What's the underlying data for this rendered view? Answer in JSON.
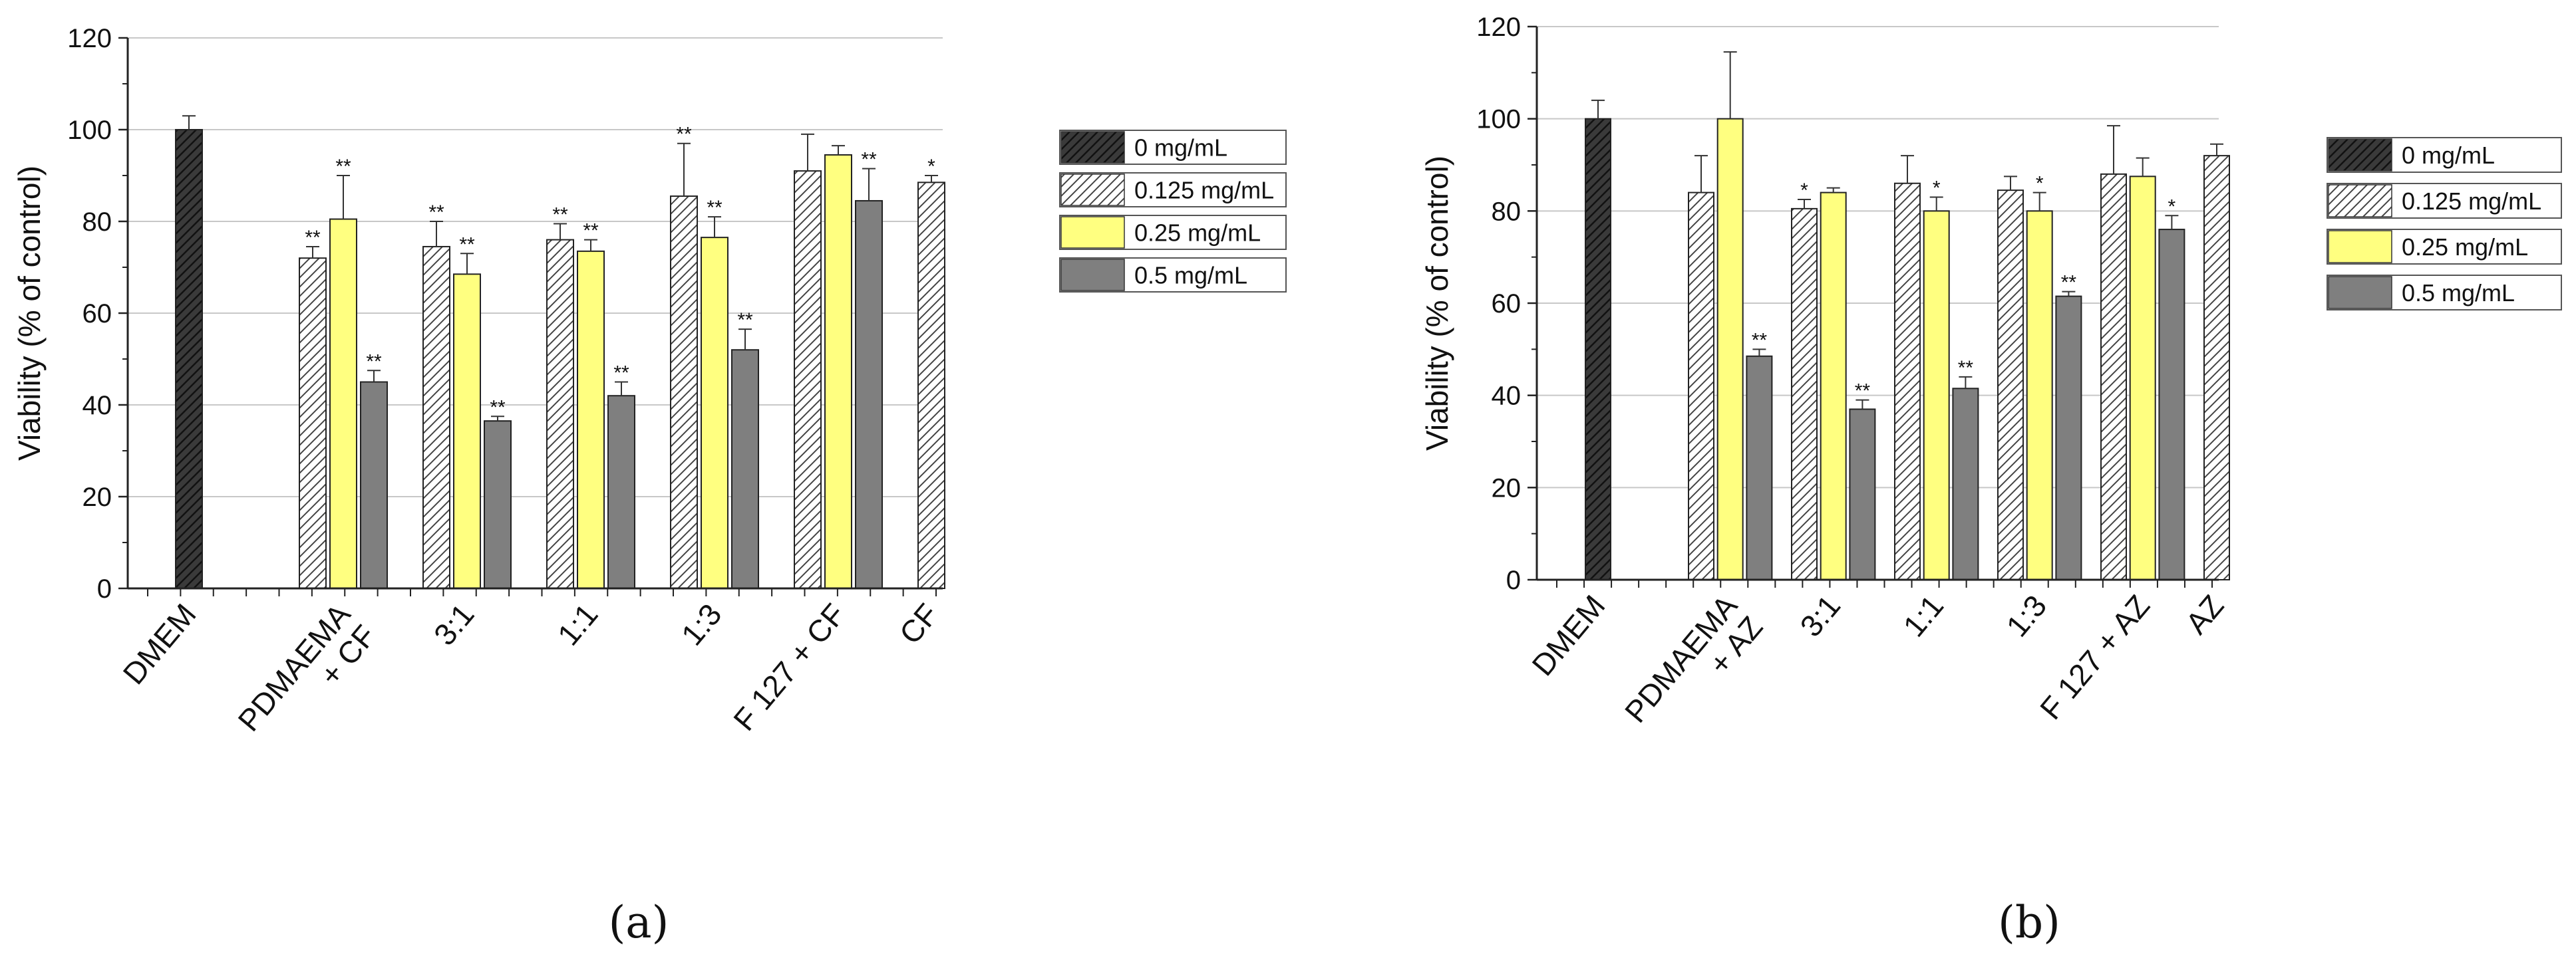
{
  "chart_data": [
    {
      "type": "bar",
      "panel_label": "(a)",
      "ylabel": "Viability (% of control)",
      "ylim": [
        0,
        120
      ],
      "yticks": [
        0,
        20,
        40,
        60,
        80,
        100,
        120
      ],
      "grid": true,
      "legend_position": "right",
      "categories": [
        "DMEM",
        "PDMAEMA\n+ CF",
        "3:1",
        "1:1",
        "1:3",
        "F 127 + CF",
        "CF"
      ],
      "series": [
        {
          "name": "0 mg/mL",
          "pattern": "dark-hatch",
          "values": [
            100,
            null,
            null,
            null,
            null,
            null,
            null
          ],
          "errors": [
            3,
            null,
            null,
            null,
            null,
            null,
            null
          ],
          "significance": [
            "",
            "",
            "",
            "",
            "",
            "",
            ""
          ]
        },
        {
          "name": "0.125 mg/mL",
          "pattern": "white-hatch",
          "values": [
            null,
            72,
            74.5,
            76,
            85.5,
            91,
            88.5
          ],
          "errors": [
            null,
            2.5,
            5.5,
            3.5,
            11.5,
            8,
            1.5
          ],
          "significance": [
            "",
            "**",
            "**",
            "**",
            "**",
            "",
            "*"
          ]
        },
        {
          "name": "0.25 mg/mL",
          "pattern": "yellow",
          "values": [
            null,
            80.5,
            68.5,
            73.5,
            76.5,
            94.5,
            null
          ],
          "errors": [
            null,
            9.5,
            4.5,
            2.5,
            4.5,
            2,
            null
          ],
          "significance": [
            "",
            "**",
            "**",
            "**",
            "**",
            "",
            ""
          ]
        },
        {
          "name": "0.5 mg/mL",
          "pattern": "gray",
          "values": [
            null,
            45,
            36.5,
            42,
            52,
            84.5,
            null
          ],
          "errors": [
            null,
            2.5,
            1,
            3,
            4.5,
            7,
            null
          ],
          "significance": [
            "",
            "**",
            "**",
            "**",
            "**",
            "**",
            ""
          ]
        }
      ]
    },
    {
      "type": "bar",
      "panel_label": "(b)",
      "ylabel": "Viability (% of control)",
      "ylim": [
        0,
        120
      ],
      "yticks": [
        0,
        20,
        40,
        60,
        80,
        100,
        120
      ],
      "grid": true,
      "legend_position": "right",
      "categories": [
        "DMEM",
        "PDMAEMA\n+ AZ",
        "3:1",
        "1:1",
        "1:3",
        "F 127 + AZ",
        "AZ"
      ],
      "series": [
        {
          "name": "0 mg/mL",
          "pattern": "dark-hatch",
          "values": [
            100,
            null,
            null,
            null,
            null,
            null,
            null
          ],
          "errors": [
            4,
            null,
            null,
            null,
            null,
            null,
            null
          ],
          "significance": [
            "",
            "",
            "",
            "",
            "",
            "",
            ""
          ]
        },
        {
          "name": "0.125 mg/mL",
          "pattern": "white-hatch",
          "values": [
            null,
            84,
            80.5,
            86,
            84.5,
            88,
            92
          ],
          "errors": [
            null,
            8,
            2,
            6,
            3,
            10.5,
            2.5
          ],
          "significance": [
            "",
            "",
            "*",
            "",
            "",
            "",
            ""
          ]
        },
        {
          "name": "0.25 mg/mL",
          "pattern": "yellow",
          "values": [
            null,
            100,
            84,
            80,
            80,
            87.5,
            null
          ],
          "errors": [
            null,
            14.5,
            1,
            3,
            4,
            4,
            null
          ],
          "significance": [
            "",
            "",
            "",
            "*",
            "*",
            "",
            ""
          ]
        },
        {
          "name": "0.5 mg/mL",
          "pattern": "gray",
          "values": [
            null,
            48.5,
            37,
            41.5,
            61.5,
            76,
            null
          ],
          "errors": [
            null,
            1.5,
            2,
            2.5,
            1,
            3,
            null
          ],
          "significance": [
            "",
            "**",
            "**",
            "**",
            "**",
            "*",
            ""
          ]
        }
      ]
    }
  ]
}
